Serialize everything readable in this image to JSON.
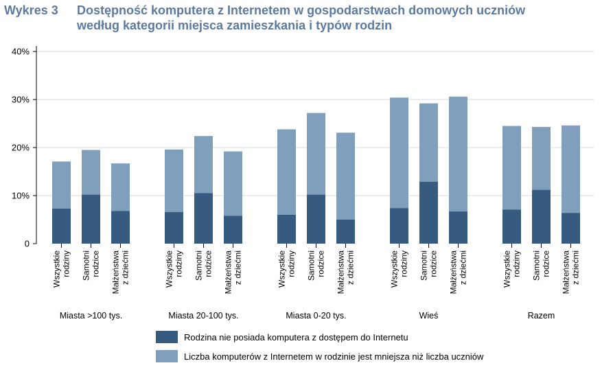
{
  "header": {
    "label": "Wykres 3",
    "title_line1": "Dostępność komputera z Internetem w gospodarstwach domowych uczniów",
    "title_line2": "według kategorii miejsca zamieszkania i typów rodzin"
  },
  "colors": {
    "dark": "#375a7f",
    "light": "#7f9fbd",
    "grid": "#d9d9d9",
    "title": "#5b7aa0"
  },
  "chart_data": {
    "type": "bar",
    "stacked": true,
    "ylim": [
      0,
      40
    ],
    "yticks": [
      "0",
      "10%",
      "20%",
      "30%",
      "40%"
    ],
    "grid": true,
    "legend_position": "bottom",
    "groups": [
      {
        "label": "Miasta >100 tys.",
        "bars": [
          {
            "label_lines": [
              "Wszystkie",
              "rodziny"
            ],
            "dark": 7.3,
            "total": 17.1
          },
          {
            "label_lines": [
              "Samotni",
              "rodzice"
            ],
            "dark": 10.2,
            "total": 19.5
          },
          {
            "label_lines": [
              "Małżeństwa",
              "z dziećmi"
            ],
            "dark": 6.8,
            "total": 16.7
          }
        ]
      },
      {
        "label": "Miasta 20-100 tys.",
        "bars": [
          {
            "label_lines": [
              "Wszystkie",
              "rodziny"
            ],
            "dark": 6.6,
            "total": 19.6
          },
          {
            "label_lines": [
              "Samotni",
              "rodzice"
            ],
            "dark": 10.5,
            "total": 22.4
          },
          {
            "label_lines": [
              "Małżeństwa",
              "z dziećmi"
            ],
            "dark": 5.8,
            "total": 19.2
          }
        ]
      },
      {
        "label": "Miasta 0-20 tys.",
        "bars": [
          {
            "label_lines": [
              "Wszystkie",
              "rodziny"
            ],
            "dark": 6.0,
            "total": 23.8
          },
          {
            "label_lines": [
              "Samotni",
              "rodzice"
            ],
            "dark": 10.2,
            "total": 27.2
          },
          {
            "label_lines": [
              "Małżeństwa",
              "z dziećmi"
            ],
            "dark": 5.0,
            "total": 23.1
          }
        ]
      },
      {
        "label": "Wieś",
        "bars": [
          {
            "label_lines": [
              "Wszystkie",
              "rodziny"
            ],
            "dark": 7.4,
            "total": 30.4
          },
          {
            "label_lines": [
              "Samotni",
              "rodzice"
            ],
            "dark": 12.9,
            "total": 29.2
          },
          {
            "label_lines": [
              "Małżeństwa",
              "z dziećmi"
            ],
            "dark": 6.7,
            "total": 30.6
          }
        ]
      },
      {
        "label": "Razem",
        "bars": [
          {
            "label_lines": [
              "Wszystkie",
              "rodziny"
            ],
            "dark": 7.1,
            "total": 24.5
          },
          {
            "label_lines": [
              "Samotni",
              "rodzice"
            ],
            "dark": 11.2,
            "total": 24.3
          },
          {
            "label_lines": [
              "Małżeństwa",
              "z dziećmi"
            ],
            "dark": 6.4,
            "total": 24.6
          }
        ]
      }
    ],
    "series": [
      {
        "name": "Rodzina nie posiada komputera z dostępem do Internetu",
        "color": "#375a7f"
      },
      {
        "name": "Liczba komputerów z Internetem w rodzinie jest mniejsza niż liczba uczniów",
        "color": "#7f9fbd"
      }
    ]
  }
}
